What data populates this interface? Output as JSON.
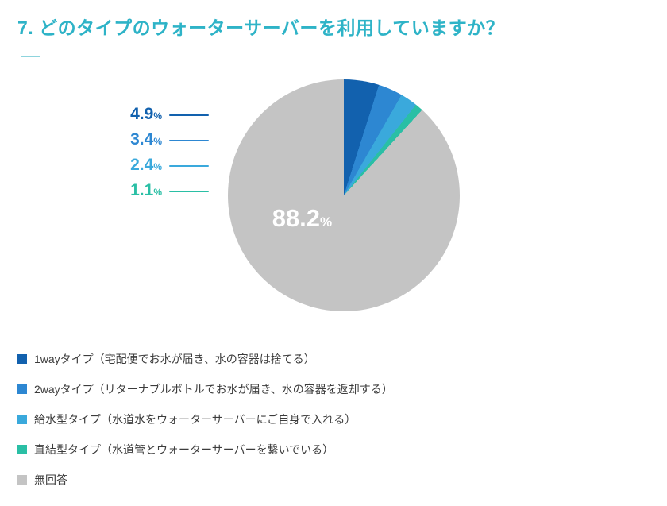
{
  "page": {
    "title": "7. どのタイプのウォーターサーバーを利用していますか？",
    "title_color": "#2eb3c7",
    "title_underline_color": "#8ed4dd",
    "background_color": "#ffffff"
  },
  "chart_data": {
    "type": "pie",
    "title": "7. どのタイプのウォーターサーバーを利用していますか？",
    "unit": "%",
    "start_angle_deg": 0,
    "direction": "clockwise",
    "legend_position": "bottom-left",
    "inside_label_slice": "無回答",
    "slices": [
      {
        "name": "1wayタイプ",
        "label": "1wayタイプ（宅配便でお水が届き、水の容器は捨てる）",
        "value": 4.9,
        "color": "#1261ae"
      },
      {
        "name": "2wayタイプ",
        "label": "2wayタイプ（リターナブルボトルでお水が届き、水の容器を返却する）",
        "value": 3.4,
        "color": "#2d87d2"
      },
      {
        "name": "給水型タイプ",
        "label": "給水型タイプ（水道水をウォーターサーバーにご自身で入れる）",
        "value": 2.4,
        "color": "#3aa9dc"
      },
      {
        "name": "直結型タイプ",
        "label": "直結型タイプ（水道管とウォーターサーバーを繋いでいる）",
        "value": 1.1,
        "color": "#2abfa5"
      },
      {
        "name": "無回答",
        "label": "無回答",
        "value": 88.2,
        "color": "#c4c4c4"
      }
    ]
  }
}
